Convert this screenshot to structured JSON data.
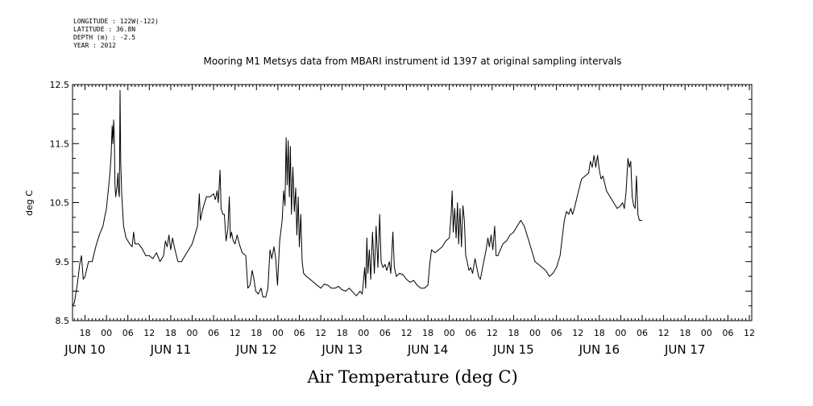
{
  "header": {
    "meta_lines": [
      "LONGITUDE : 122W(-122)",
      "LATITUDE : 36.8N",
      "DEPTH (m) : -2.5",
      "YEAR : 2012"
    ],
    "title": "Mooring M1 Metsys data from MBARI instrument id 1397 at original sampling intervals"
  },
  "chart_data": {
    "type": "line",
    "title": "Mooring M1 Metsys data from MBARI instrument id 1397 at original sampling intervals",
    "xlabel": "Air Temperature (deg C)",
    "ylabel": "deg C",
    "ylim": [
      8.5,
      12.5
    ],
    "yticks": [
      8.5,
      9.5,
      10.5,
      11.5,
      12.5
    ],
    "ytick_labels": [
      "8.5",
      "9.5",
      "10.5",
      "11.5",
      "12.5"
    ],
    "xlim_hours": [
      -9.5,
      180.5
    ],
    "x_unit": "hours from 2012-06-10 00:00",
    "hour_ticks": [
      {
        "h": -6,
        "label": "18"
      },
      {
        "h": 0,
        "label": "00"
      },
      {
        "h": 6,
        "label": "06"
      },
      {
        "h": 12,
        "label": "12"
      },
      {
        "h": 18,
        "label": "18"
      },
      {
        "h": 24,
        "label": "00"
      },
      {
        "h": 30,
        "label": "06"
      },
      {
        "h": 36,
        "label": "12"
      },
      {
        "h": 42,
        "label": "18"
      },
      {
        "h": 48,
        "label": "00"
      },
      {
        "h": 54,
        "label": "06"
      },
      {
        "h": 60,
        "label": "12"
      },
      {
        "h": 66,
        "label": "18"
      },
      {
        "h": 72,
        "label": "00"
      },
      {
        "h": 78,
        "label": "06"
      },
      {
        "h": 84,
        "label": "12"
      },
      {
        "h": 90,
        "label": "18"
      },
      {
        "h": 96,
        "label": "00"
      },
      {
        "h": 102,
        "label": "06"
      },
      {
        "h": 108,
        "label": "12"
      },
      {
        "h": 114,
        "label": "18"
      },
      {
        "h": 120,
        "label": "00"
      },
      {
        "h": 126,
        "label": "06"
      },
      {
        "h": 132,
        "label": "12"
      },
      {
        "h": 138,
        "label": "18"
      },
      {
        "h": 144,
        "label": "00"
      },
      {
        "h": 150,
        "label": "06"
      },
      {
        "h": 156,
        "label": "12"
      },
      {
        "h": 162,
        "label": "18"
      },
      {
        "h": 168,
        "label": "00"
      },
      {
        "h": 174,
        "label": "06"
      },
      {
        "h": 180,
        "label": "12"
      }
    ],
    "day_labels": [
      {
        "h": -6,
        "label": "JUN 10"
      },
      {
        "h": 18,
        "label": "JUN 11"
      },
      {
        "h": 42,
        "label": "JUN 12"
      },
      {
        "h": 66,
        "label": "JUN 13"
      },
      {
        "h": 90,
        "label": "JUN 14"
      },
      {
        "h": 114,
        "label": "JUN 15"
      },
      {
        "h": 138,
        "label": "JUN 16"
      },
      {
        "h": 162,
        "label": "JUN 17"
      }
    ],
    "series": [
      {
        "points": [
          [
            -9.5,
            8.75
          ],
          [
            -9,
            8.8
          ],
          [
            -8.2,
            9.1
          ],
          [
            -7.5,
            9.45
          ],
          [
            -7,
            9.6
          ],
          [
            -6.5,
            9.2
          ],
          [
            -6,
            9.25
          ],
          [
            -5,
            9.5
          ],
          [
            -4,
            9.5
          ],
          [
            -3,
            9.75
          ],
          [
            -2,
            9.95
          ],
          [
            -1,
            10.1
          ],
          [
            0,
            10.4
          ],
          [
            0.5,
            10.7
          ],
          [
            1,
            11.0
          ],
          [
            1.3,
            11.3
          ],
          [
            1.6,
            11.8
          ],
          [
            1.8,
            11.5
          ],
          [
            2.0,
            11.9
          ],
          [
            2.2,
            11.6
          ],
          [
            2.4,
            10.8
          ],
          [
            2.6,
            10.6
          ],
          [
            2.8,
            10.7
          ],
          [
            3.0,
            10.8
          ],
          [
            3.2,
            11.0
          ],
          [
            3.4,
            10.7
          ],
          [
            3.6,
            10.6
          ],
          [
            3.8,
            12.4
          ],
          [
            4.0,
            11.2
          ],
          [
            4.3,
            10.6
          ],
          [
            4.8,
            10.1
          ],
          [
            5.5,
            9.9
          ],
          [
            6.5,
            9.8
          ],
          [
            7.2,
            9.75
          ],
          [
            7.6,
            10.0
          ],
          [
            8.0,
            9.8
          ],
          [
            9,
            9.8
          ],
          [
            10,
            9.72
          ],
          [
            11,
            9.6
          ],
          [
            12,
            9.6
          ],
          [
            13,
            9.55
          ],
          [
            14,
            9.65
          ],
          [
            15,
            9.5
          ],
          [
            16,
            9.6
          ],
          [
            16.5,
            9.85
          ],
          [
            17,
            9.75
          ],
          [
            17.5,
            9.95
          ],
          [
            18,
            9.7
          ],
          [
            18.5,
            9.9
          ],
          [
            19,
            9.75
          ],
          [
            20,
            9.5
          ],
          [
            21,
            9.5
          ],
          [
            22,
            9.6
          ],
          [
            23,
            9.7
          ],
          [
            24,
            9.8
          ],
          [
            25,
            10.0
          ],
          [
            25.5,
            10.1
          ],
          [
            26,
            10.65
          ],
          [
            26.3,
            10.2
          ],
          [
            27,
            10.4
          ],
          [
            28,
            10.6
          ],
          [
            29,
            10.6
          ],
          [
            30,
            10.65
          ],
          [
            30.5,
            10.55
          ],
          [
            31,
            10.7
          ],
          [
            31.3,
            10.5
          ],
          [
            31.8,
            11.05
          ],
          [
            32.1,
            10.4
          ],
          [
            32.6,
            10.3
          ],
          [
            33,
            10.3
          ],
          [
            33.5,
            9.85
          ],
          [
            34,
            10.05
          ],
          [
            34.4,
            10.6
          ],
          [
            34.7,
            9.9
          ],
          [
            35,
            10.0
          ],
          [
            35.5,
            9.85
          ],
          [
            36,
            9.8
          ],
          [
            36.6,
            9.95
          ],
          [
            37.2,
            9.8
          ],
          [
            38,
            9.65
          ],
          [
            39,
            9.6
          ],
          [
            39.6,
            9.05
          ],
          [
            40.2,
            9.1
          ],
          [
            40.8,
            9.35
          ],
          [
            41.3,
            9.2
          ],
          [
            41.8,
            9.0
          ],
          [
            42.5,
            8.95
          ],
          [
            43.3,
            9.05
          ],
          [
            43.8,
            8.9
          ],
          [
            44.6,
            8.9
          ],
          [
            45.2,
            9.05
          ],
          [
            45.8,
            9.7
          ],
          [
            46.3,
            9.55
          ],
          [
            46.9,
            9.75
          ],
          [
            47.4,
            9.55
          ],
          [
            47.9,
            9.1
          ],
          [
            48.5,
            9.85
          ],
          [
            49.2,
            10.2
          ],
          [
            49.6,
            10.7
          ],
          [
            50,
            10.45
          ],
          [
            50.3,
            11.6
          ],
          [
            50.6,
            10.8
          ],
          [
            50.9,
            11.55
          ],
          [
            51.2,
            10.6
          ],
          [
            51.5,
            11.45
          ],
          [
            51.8,
            10.3
          ],
          [
            52.2,
            11.1
          ],
          [
            52.6,
            10.35
          ],
          [
            53,
            10.75
          ],
          [
            53.3,
            9.95
          ],
          [
            53.7,
            10.6
          ],
          [
            54,
            9.75
          ],
          [
            54.4,
            10.3
          ],
          [
            54.8,
            9.5
          ],
          [
            55.2,
            9.3
          ],
          [
            56,
            9.25
          ],
          [
            57,
            9.2
          ],
          [
            58,
            9.15
          ],
          [
            59,
            9.1
          ],
          [
            60,
            9.05
          ],
          [
            61,
            9.12
          ],
          [
            62,
            9.1
          ],
          [
            63,
            9.05
          ],
          [
            64,
            9.05
          ],
          [
            65,
            9.08
          ],
          [
            66,
            9.02
          ],
          [
            67,
            9.0
          ],
          [
            68,
            9.05
          ],
          [
            69,
            8.98
          ],
          [
            70,
            8.92
          ],
          [
            71,
            9.0
          ],
          [
            71.6,
            8.95
          ],
          [
            72,
            9.2
          ],
          [
            72.3,
            9.4
          ],
          [
            72.6,
            9.05
          ],
          [
            72.9,
            9.9
          ],
          [
            73.2,
            9.3
          ],
          [
            73.6,
            9.7
          ],
          [
            74,
            9.2
          ],
          [
            74.5,
            10.0
          ],
          [
            75,
            9.3
          ],
          [
            75.5,
            10.1
          ],
          [
            76,
            9.4
          ],
          [
            76.5,
            10.3
          ],
          [
            76.9,
            9.5
          ],
          [
            77.4,
            9.4
          ],
          [
            78,
            9.45
          ],
          [
            78.5,
            9.35
          ],
          [
            79.2,
            9.5
          ],
          [
            79.6,
            9.3
          ],
          [
            80.2,
            10.0
          ],
          [
            80.6,
            9.4
          ],
          [
            81.2,
            9.25
          ],
          [
            82,
            9.3
          ],
          [
            83,
            9.28
          ],
          [
            84,
            9.2
          ],
          [
            85,
            9.15
          ],
          [
            86,
            9.18
          ],
          [
            87,
            9.1
          ],
          [
            88,
            9.05
          ],
          [
            89,
            9.05
          ],
          [
            90,
            9.1
          ],
          [
            90.5,
            9.45
          ],
          [
            91,
            9.7
          ],
          [
            92,
            9.65
          ],
          [
            93,
            9.7
          ],
          [
            94,
            9.75
          ],
          [
            95,
            9.85
          ],
          [
            96,
            9.9
          ],
          [
            96.5,
            10.3
          ],
          [
            96.8,
            10.7
          ],
          [
            97.1,
            10.0
          ],
          [
            97.5,
            10.4
          ],
          [
            97.9,
            9.9
          ],
          [
            98.3,
            10.5
          ],
          [
            98.6,
            9.8
          ],
          [
            99,
            10.4
          ],
          [
            99.4,
            9.75
          ],
          [
            99.8,
            10.45
          ],
          [
            100.2,
            10.2
          ],
          [
            100.6,
            9.6
          ],
          [
            101,
            9.5
          ],
          [
            101.5,
            9.35
          ],
          [
            102,
            9.4
          ],
          [
            102.5,
            9.3
          ],
          [
            103.2,
            9.55
          ],
          [
            103.7,
            9.4
          ],
          [
            104.2,
            9.25
          ],
          [
            104.7,
            9.2
          ],
          [
            105.3,
            9.4
          ],
          [
            105.8,
            9.55
          ],
          [
            106.3,
            9.7
          ],
          [
            106.8,
            9.9
          ],
          [
            107.2,
            9.75
          ],
          [
            107.7,
            9.95
          ],
          [
            108.2,
            9.7
          ],
          [
            108.7,
            10.1
          ],
          [
            109.1,
            9.6
          ],
          [
            109.6,
            9.6
          ],
          [
            110.3,
            9.7
          ],
          [
            111,
            9.8
          ],
          [
            112,
            9.85
          ],
          [
            113,
            9.95
          ],
          [
            114,
            10.0
          ],
          [
            115,
            10.1
          ],
          [
            116,
            10.2
          ],
          [
            117,
            10.1
          ],
          [
            118,
            9.9
          ],
          [
            119,
            9.7
          ],
          [
            120,
            9.5
          ],
          [
            121,
            9.45
          ],
          [
            122,
            9.4
          ],
          [
            123,
            9.35
          ],
          [
            124,
            9.25
          ],
          [
            125,
            9.3
          ],
          [
            126,
            9.4
          ],
          [
            127,
            9.6
          ],
          [
            127.6,
            9.9
          ],
          [
            128.2,
            10.2
          ],
          [
            128.8,
            10.35
          ],
          [
            129.4,
            10.3
          ],
          [
            130,
            10.4
          ],
          [
            130.5,
            10.3
          ],
          [
            131,
            10.4
          ],
          [
            132,
            10.65
          ],
          [
            133,
            10.9
          ],
          [
            134,
            10.95
          ],
          [
            135,
            11.0
          ],
          [
            135.5,
            11.2
          ],
          [
            136,
            11.1
          ],
          [
            136.5,
            11.3
          ],
          [
            137,
            11.1
          ],
          [
            137.5,
            11.3
          ],
          [
            138,
            11.05
          ],
          [
            138.5,
            10.9
          ],
          [
            139,
            10.95
          ],
          [
            140,
            10.7
          ],
          [
            141,
            10.6
          ],
          [
            142,
            10.5
          ],
          [
            143,
            10.4
          ],
          [
            144,
            10.45
          ],
          [
            144.5,
            10.5
          ],
          [
            145,
            10.4
          ],
          [
            145.5,
            10.7
          ],
          [
            146,
            11.25
          ],
          [
            146.4,
            11.1
          ],
          [
            146.8,
            11.2
          ],
          [
            147.2,
            10.6
          ],
          [
            147.6,
            10.45
          ],
          [
            148,
            10.4
          ],
          [
            148.4,
            10.95
          ],
          [
            148.8,
            10.3
          ],
          [
            149.2,
            10.2
          ],
          [
            150,
            10.2
          ]
        ]
      }
    ],
    "axis_map": {
      "h_start": -9.5,
      "h_end": 150,
      "label_h_end": 180
    }
  }
}
